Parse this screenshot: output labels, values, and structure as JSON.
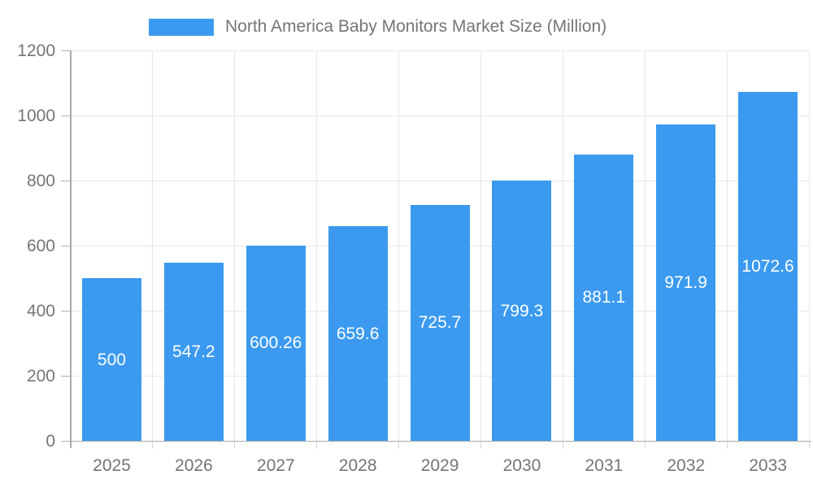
{
  "chart_data": {
    "type": "bar",
    "title": "North America Baby Monitors Market Size (Million)",
    "legend": {
      "label": "North America Baby Monitors Market Size (Million)",
      "position": "top"
    },
    "categories": [
      "2025",
      "2026",
      "2027",
      "2028",
      "2029",
      "2030",
      "2031",
      "2032",
      "2033"
    ],
    "series": [
      {
        "name": "North America Baby Monitors Market Size (Million)",
        "values": [
          500,
          547.2,
          600.26,
          659.6,
          725.7,
          799.3,
          881.1,
          971.9,
          1072.6
        ],
        "value_labels": [
          "500",
          "547.2",
          "600.26",
          "659.6",
          "725.7",
          "799.3",
          "881.1",
          "971.9",
          "1072.6"
        ]
      }
    ],
    "xlabel": "",
    "ylabel": "",
    "ylim": [
      0,
      1200
    ],
    "yticks": [
      0,
      200,
      400,
      600,
      800,
      1000,
      1200
    ],
    "grid": true,
    "colors": {
      "bar": "#3B9AEF",
      "value_label": "#ffffff",
      "axis_text": "#757575"
    }
  }
}
